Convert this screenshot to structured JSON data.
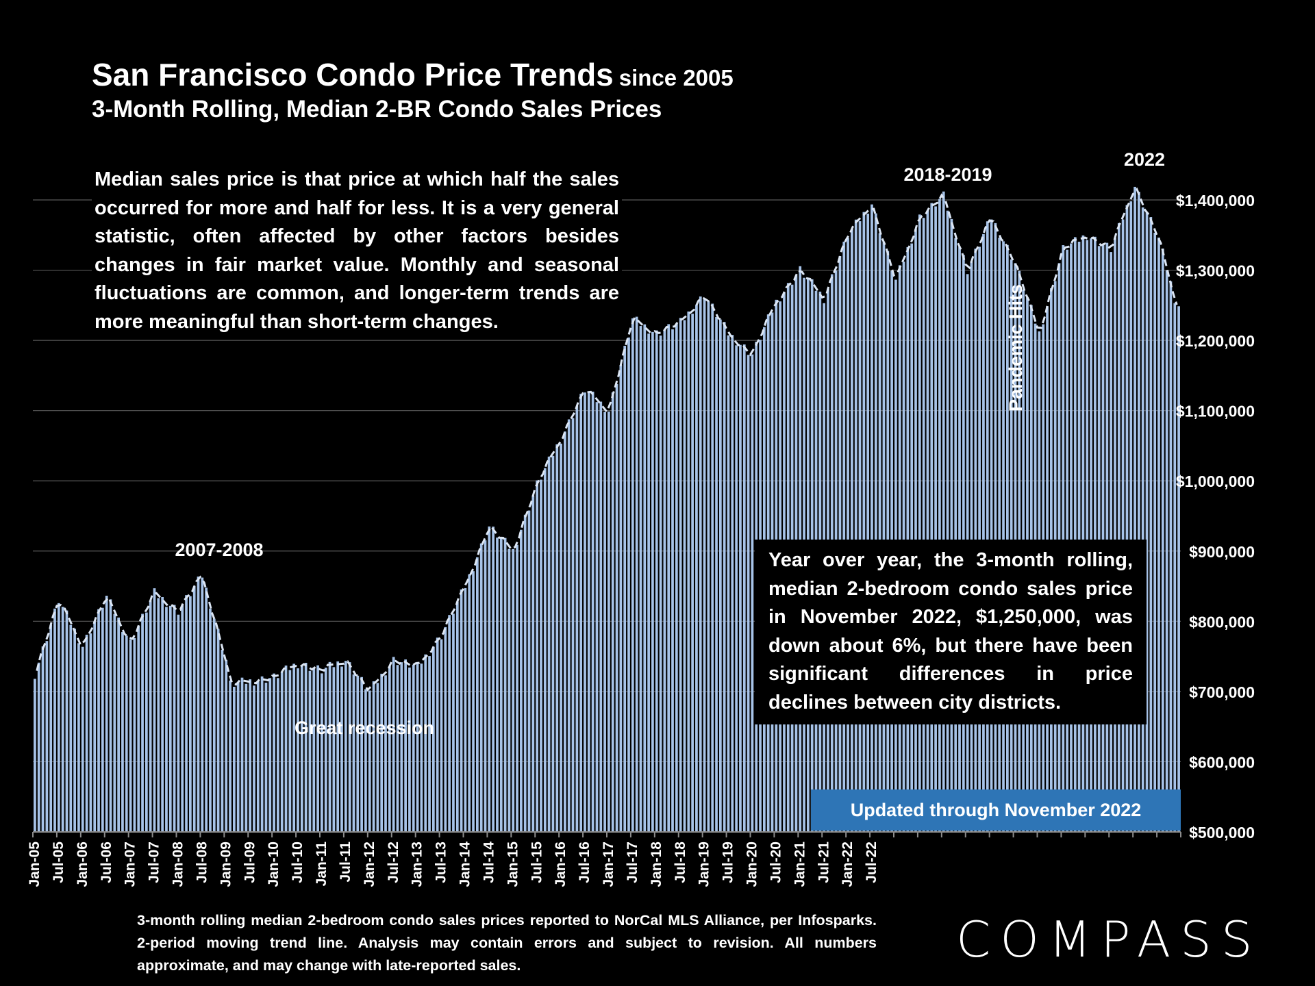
{
  "title": {
    "main": "San Francisco Condo Price Trends",
    "suffix": "since 2005",
    "subtitle": "3-Month Rolling, Median 2-BR Condo Sales Prices"
  },
  "note": "Median sales price is that price at which half the sales occurred for more and half for less. It is a very general statistic, often affected by other factors besides changes in fair market value. Monthly and seasonal fluctuations are common, and longer-term trends are more meaningful than short-term changes.",
  "callout": "Year over year, the 3-month rolling, median 2-bedroom condo sales price in November 2022, $1,250,000, was down about 6%, but there have been significant differences in price declines between city districts.",
  "updated_label": "Updated through November 2022",
  "footnote": "3-month rolling median 2-bedroom condo sales prices reported to NorCal MLS Alliance, per Infosparks. 2-period moving trend line. Analysis may contain errors and subject to revision. All numbers approximate, and may change with late-reported sales.",
  "brand": "COMPASS",
  "colors": {
    "bar": "#a7c3e8",
    "trend": "#dce6f4",
    "grid": "#595959",
    "accent": "#2e75b6"
  },
  "chart_data": {
    "type": "bar",
    "title": "San Francisco Condo Price Trends since 2005",
    "subtitle": "3-Month Rolling, Median 2-BR Condo Sales Prices",
    "ylabel": "",
    "ylim": [
      500000,
      1400000
    ],
    "y_ticks": [
      500000,
      600000,
      700000,
      800000,
      900000,
      1000000,
      1100000,
      1200000,
      1300000,
      1400000
    ],
    "y_tick_labels": [
      "$500,000",
      "$600,000",
      "$700,000",
      "$800,000",
      "$900,000",
      "$1,000,000",
      "$1,100,000",
      "$1,200,000",
      "$1,300,000",
      "$1,400,000"
    ],
    "y_axis_position": "right",
    "x_tick_labels": [
      "Jan-05",
      "Jul-05",
      "Jan-06",
      "Jul-06",
      "Jan-07",
      "Jul-07",
      "Jan-08",
      "Jul-08",
      "Jan-09",
      "Jul-09",
      "Jan-10",
      "Jul-10",
      "Jan-11",
      "Jul-11",
      "Jan-12",
      "Jul-12",
      "Jan-13",
      "Jul-13",
      "Jan-14",
      "Jul-14",
      "Jan-15",
      "Jul-15",
      "Jan-16",
      "Jul-16",
      "Jan-17",
      "Jul-17",
      "Jan-18",
      "Jul-18",
      "Jan-19",
      "Jul-19",
      "Jan-20",
      "Jul-20",
      "Jan-21",
      "Jul-21",
      "Jan-22",
      "Jul-22"
    ],
    "start_month": "Jan-05",
    "end_month": "Nov-22",
    "trend_line": "2-period moving average (dashed)",
    "grid": true,
    "annotations": [
      "2007-2008",
      "Great recession",
      "2018-2019",
      "2022",
      "Pandemic Hits"
    ],
    "key_points": [
      [
        0,
        725000
      ],
      [
        6,
        830000
      ],
      [
        12,
        765000
      ],
      [
        18,
        835000
      ],
      [
        24,
        770000
      ],
      [
        30,
        840000
      ],
      [
        36,
        815000
      ],
      [
        42,
        865000
      ],
      [
        48,
        745000
      ],
      [
        49,
        710000
      ],
      [
        60,
        720000
      ],
      [
        66,
        740000
      ],
      [
        72,
        730000
      ],
      [
        78,
        745000
      ],
      [
        84,
        700000
      ],
      [
        90,
        745000
      ],
      [
        96,
        735000
      ],
      [
        102,
        780000
      ],
      [
        108,
        850000
      ],
      [
        114,
        935000
      ],
      [
        120,
        900000
      ],
      [
        126,
        995000
      ],
      [
        132,
        1060000
      ],
      [
        138,
        1130000
      ],
      [
        144,
        1100000
      ],
      [
        150,
        1230000
      ],
      [
        156,
        1210000
      ],
      [
        162,
        1225000
      ],
      [
        168,
        1265000
      ],
      [
        174,
        1210000
      ],
      [
        180,
        1180000
      ],
      [
        186,
        1255000
      ],
      [
        192,
        1300000
      ],
      [
        198,
        1260000
      ],
      [
        204,
        1350000
      ],
      [
        210,
        1395000
      ],
      [
        216,
        1285000
      ],
      [
        222,
        1375000
      ],
      [
        228,
        1405000
      ],
      [
        234,
        1300000
      ],
      [
        240,
        1375000
      ],
      [
        246,
        1310000
      ],
      [
        252,
        1210000
      ],
      [
        258,
        1330000
      ],
      [
        264,
        1350000
      ],
      [
        270,
        1330000
      ],
      [
        276,
        1420000
      ],
      [
        282,
        1345000
      ],
      [
        286,
        1260000
      ],
      [
        287,
        1250000
      ]
    ]
  }
}
